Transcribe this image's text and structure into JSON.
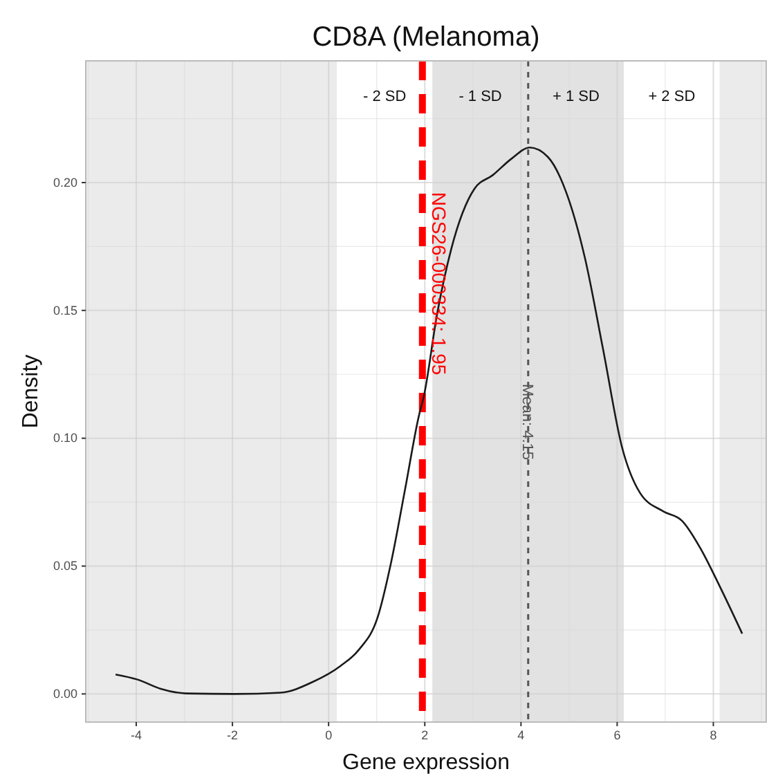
{
  "chart_data": {
    "type": "line",
    "title": "CD8A (Melanoma)",
    "xlabel": "Gene expression",
    "ylabel": "Density",
    "x": [
      -4.43,
      -3.97,
      -3.49,
      -2.96,
      -1.96,
      -1.0,
      -0.33,
      0.25,
      0.63,
      1.02,
      1.3,
      1.59,
      1.88,
      1.98,
      2.26,
      2.55,
      3.03,
      3.42,
      3.8,
      4.18,
      4.56,
      4.95,
      5.33,
      5.71,
      6.1,
      6.48,
      6.96,
      7.35,
      7.73,
      8.12,
      8.6
    ],
    "series": [
      {
        "color": "#1a1a1a",
        "values": [
          0.0076,
          0.0056,
          0.002,
          0.0002,
          0,
          0.0005,
          0.0047,
          0.011,
          0.0173,
          0.03,
          0.0515,
          0.08,
          0.109,
          0.1164,
          0.149,
          0.174,
          0.1975,
          0.203,
          0.2093,
          0.2137,
          0.21,
          0.1957,
          0.1705,
          0.1345,
          0.0966,
          0.0785,
          0.0714,
          0.0677,
          0.057,
          0.0426,
          0.0236
        ]
      }
    ],
    "xlim": [
      -5.05,
      9.1
    ],
    "ylim": [
      -0.011,
      0.2476
    ],
    "xticks": [
      -4,
      -2,
      0,
      2,
      4,
      6,
      8
    ],
    "yticks": [
      {
        "value": 0,
        "label": "0.00"
      },
      {
        "value": 0.05,
        "label": "0.05"
      },
      {
        "value": 0.1,
        "label": "0.10"
      },
      {
        "value": 0.15,
        "label": "0.15"
      },
      {
        "value": 0.2,
        "label": "0.20"
      }
    ],
    "grid": true,
    "bands": [
      {
        "axis": "x",
        "from": 0.17,
        "to": 2.16,
        "label": "- 2 SD",
        "color": "#ffffff"
      },
      {
        "axis": "x",
        "from": 2.16,
        "to": 4.15,
        "label": "- 1 SD",
        "color": "#e2e2e2"
      },
      {
        "axis": "x",
        "from": 4.15,
        "to": 6.14,
        "label": "+ 1 SD",
        "color": "#e2e2e2"
      },
      {
        "axis": "x",
        "from": 6.14,
        "to": 8.13,
        "label": "+ 2 SD",
        "color": "#ffffff"
      }
    ],
    "ref_lines": [
      {
        "axis": "x",
        "value": 1.95,
        "label": "NGS26-000334: 1.95",
        "color": "#ff0000",
        "line_style": "dashed"
      },
      {
        "axis": "x",
        "value": 4.15,
        "label": "Mean: 4.15",
        "color": "#555555",
        "line_style": "dotted"
      }
    ]
  }
}
